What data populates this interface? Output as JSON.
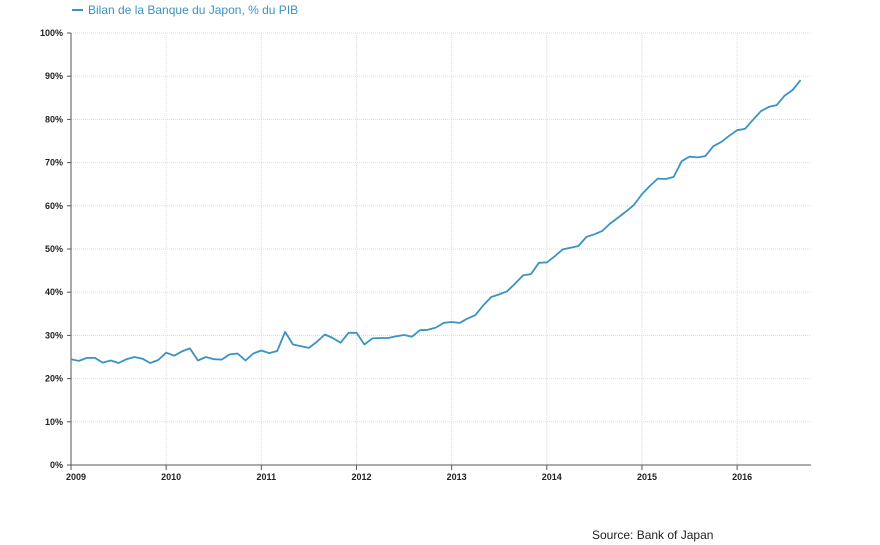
{
  "chart_data": {
    "type": "line",
    "title": "",
    "xlabel": "",
    "ylabel": "",
    "x_start": "2009-01",
    "x_step_months": 1,
    "x_ticks": [
      "2009",
      "2010",
      "2011",
      "2012",
      "2013",
      "2014",
      "2015",
      "2016"
    ],
    "y_ticks": [
      "0%",
      "10%",
      "20%",
      "30%",
      "40%",
      "50%",
      "60%",
      "70%",
      "80%",
      "90%",
      "100%"
    ],
    "ylim": [
      0,
      100
    ],
    "grid": true,
    "legend_position": "top-left",
    "series": [
      {
        "name": "Bilan de la Banque du Japon, % du PIB",
        "color": "#3a93c3",
        "values": [
          24.5,
          24.1,
          24.8,
          24.8,
          23.7,
          24.2,
          23.6,
          24.5,
          25.0,
          24.6,
          23.6,
          24.3,
          26.0,
          25.3,
          26.3,
          27.0,
          24.2,
          25.0,
          24.5,
          24.4,
          25.6,
          25.8,
          24.2,
          25.8,
          26.5,
          25.9,
          26.4,
          30.8,
          27.9,
          27.5,
          27.1,
          28.5,
          30.2,
          29.4,
          28.3,
          30.6,
          30.6,
          27.9,
          29.3,
          29.4,
          29.4,
          29.8,
          30.1,
          29.7,
          31.2,
          31.3,
          31.8,
          32.9,
          33.1,
          32.9,
          33.9,
          34.7,
          37.0,
          38.9,
          39.5,
          40.2,
          42.0,
          43.9,
          44.2,
          46.8,
          46.9,
          48.3,
          49.9,
          50.3,
          50.7,
          52.8,
          53.4,
          54.2,
          55.9,
          57.3,
          58.7,
          60.2,
          62.7,
          64.6,
          66.3,
          66.2,
          66.7,
          70.3,
          71.4,
          71.2,
          71.5,
          73.8,
          74.8,
          76.2,
          77.5,
          77.8,
          79.9,
          81.9,
          82.9,
          83.3,
          85.5,
          86.8,
          89.1
        ]
      }
    ]
  },
  "source": "Source: Bank of Japan"
}
